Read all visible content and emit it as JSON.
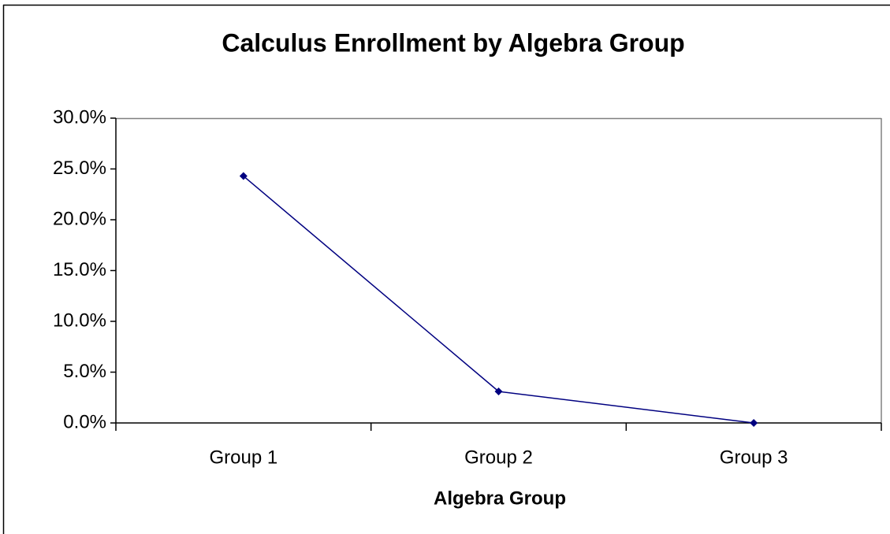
{
  "chart_data": {
    "type": "line",
    "title": "Calculus Enrollment by Algebra Group",
    "x_label": "Algebra Group",
    "categories": [
      "Group 1",
      "Group 2",
      "Group 3"
    ],
    "series": [
      {
        "name": "Calculus Enrollment",
        "color": "#000080",
        "values": [
          24.3,
          3.1,
          0
        ]
      }
    ],
    "ylim": [
      0,
      30
    ],
    "yticks": [
      {
        "value": 0,
        "label": "0.0%"
      },
      {
        "value": 5,
        "label": "5.0%"
      },
      {
        "value": 10,
        "label": "10.0%"
      },
      {
        "value": 15,
        "label": "15.0%"
      },
      {
        "value": 20,
        "label": "20.0%"
      },
      {
        "value": 25,
        "label": "25.0%"
      },
      {
        "value": 30,
        "label": "30.0%"
      }
    ],
    "grid": false,
    "legend": false
  }
}
